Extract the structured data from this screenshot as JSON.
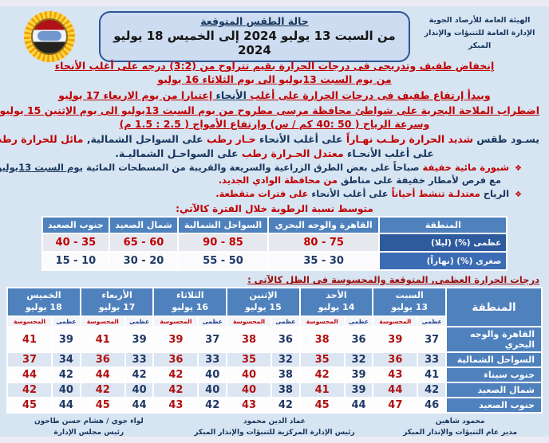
{
  "colors": {
    "red": "#c00000",
    "blue": "#17365d",
    "table_header_blue": "#4f81bd",
    "row_alt": "#dce6f2",
    "box_bg": "#cddcf0",
    "box_border": "#2f5496",
    "page_bg": "#d7e4f2"
  },
  "header": {
    "org_line1": "الهيئة العامة للأرصاد الجوية",
    "org_line2": "الإدارة العامة للتنبؤات والإنذار المبكر",
    "box_title": "حالة الطقس المتوقعة",
    "box_subtitle": "من السبت 13 يوليو 2024  إلى  الخميس 18 يوليو 2024",
    "logo": "ema-sun-emblem"
  },
  "paragraphs": [
    {
      "kind": "center",
      "name": "temp-drop-para",
      "lines": [
        [
          {
            "t": "إنخفاض طفيف وتدريجى فى درجات الحرارة بقيم تتراوح من ",
            "c": "r",
            "u": 1
          },
          {
            "t": "(3:2)",
            "c": "r",
            "u": 1,
            "d": 1
          },
          {
            "t": " درجه على أغلب الأنحاء",
            "c": "r",
            "u": 1
          }
        ],
        [
          {
            "t": "من يوم السبت 13يوليو الى يوم الثلاثاء 16 يوليو",
            "c": "r",
            "u": 1
          }
        ]
      ]
    },
    {
      "kind": "center",
      "name": "temp-rise-para",
      "lines": [
        [
          {
            "t": "ويبدأ إرتفاع طفيف فى درجات الحرارة على أغلب ",
            "c": "r",
            "u": 1
          },
          {
            "t": "الأنحاء",
            "c": "b",
            "u": 1
          },
          {
            "t": " إعتبارا من يوم الاربعاء 17 يوليو",
            "c": "r",
            "u": 1
          }
        ]
      ]
    },
    {
      "kind": "center",
      "name": "marine-warning-para",
      "lines": [
        [
          {
            "t": "اضطراب الملاحة البحرية على شواطئ محافظة مرسى مطروح من يوم السبت 13يوليو الى يوم الإثنين 15 يوليو",
            "c": "r",
            "u": 1
          }
        ],
        [
          {
            "t": "وسرعة الرياح ( ",
            "c": "r",
            "u": 1
          },
          {
            "t": "40: 50",
            "c": "r",
            "u": 1,
            "d": 1
          },
          {
            "t": " كم / س) وإرتفاع الأمواج ( ",
            "c": "r",
            "u": 1
          },
          {
            "t": "1.5 : 2.5",
            "c": "r",
            "u": 1,
            "d": 1
          },
          {
            "t": " م)",
            "c": "r",
            "u": 1
          }
        ]
      ]
    },
    {
      "kind": "center",
      "name": "general-weather-para",
      "lines": [
        [
          {
            "t": "يسـود طقس ",
            "c": "b"
          },
          {
            "t": "شديد الحرارة رطـب نهـاراً ",
            "c": "r"
          },
          {
            "t": "على أغلب الأنحاء ",
            "c": "b"
          },
          {
            "t": "حـار رطب ",
            "c": "r"
          },
          {
            "t": "على السواحل الشمالية, ",
            "c": "b"
          },
          {
            "t": "مائل للحرارة رطب ليـلاً",
            "c": "r"
          }
        ],
        [
          {
            "t": "على أغلب الأنحـاء  ",
            "c": "b"
          },
          {
            "t": "معتدل الحـرارة رطب ",
            "c": "r"
          },
          {
            "t": "على السواحـل الشماليـة.",
            "c": "b"
          }
        ]
      ]
    },
    {
      "kind": "bullet",
      "name": "fog-bullet",
      "lines": [
        [
          {
            "t": "شبورة مائية خفيفة ",
            "c": "r"
          },
          {
            "t": "صباحاً على بعض الطرق الزراعية والسريعة والقريبة من المسطحات المائية ",
            "c": "b"
          },
          {
            "t": "يوم السبت 13يوليو",
            "c": "b",
            "u": 1
          }
        ],
        [
          {
            "t": "مع فرص لأمطار خفيفة على مناطق ",
            "c": "b"
          },
          {
            "t": "من محافظة الوادي الجديد.",
            "c": "r"
          }
        ]
      ]
    },
    {
      "kind": "bullet",
      "name": "wind-bullet",
      "lines": [
        [
          {
            "t": "الرياح ",
            "c": "b"
          },
          {
            "t": "معتدلـة تنشط أحياناً ",
            "c": "r"
          },
          {
            "t": "على أغلب الأنحاء ",
            "c": "b"
          },
          {
            "t": "على فترات متقطعة.",
            "c": "r"
          }
        ]
      ]
    }
  ],
  "humidity": {
    "title": "متوسط نسبة الرطوبة خلال الفترة كالآتي:",
    "columns": [
      "المنطقة",
      "القاهرة والوجه البحري",
      "السواحل الشمالية",
      "شمال الصعيد",
      "جنوب الصعيد"
    ],
    "rows": [
      {
        "label": "عظمى (%) (ليلا)",
        "values": [
          "80 - 75",
          "90 - 85",
          "65 - 60",
          "40 - 35"
        ],
        "tone": "max"
      },
      {
        "label": "صغرى (%) (نهاراً)",
        "values": [
          "35 - 30",
          "55 - 50",
          "30 - 20",
          "15 - 10"
        ],
        "tone": "min"
      }
    ]
  },
  "temperature": {
    "title": "درجات الحرارة العظمى, المتوقعة والمحسوسة فى الظل كالآتى :",
    "region_header": "المنطقة",
    "sub_labels": [
      "عظمى",
      "المحسوسة"
    ],
    "days": [
      {
        "name": "السبت",
        "date": "13 يوليو"
      },
      {
        "name": "الأحد",
        "date": "14 يوليو"
      },
      {
        "name": "الإثنين",
        "date": "15 يوليو"
      },
      {
        "name": "الثلاثاء",
        "date": "16 يوليو"
      },
      {
        "name": "الأربعاء",
        "date": "17 يوليو"
      },
      {
        "name": "الخميس",
        "date": "18 يوليو"
      }
    ],
    "rows": [
      {
        "region": "القاهرة والوجه البحري",
        "values": [
          [
            37,
            39
          ],
          [
            36,
            38
          ],
          [
            36,
            38
          ],
          [
            37,
            39
          ],
          [
            39,
            41
          ],
          [
            39,
            41
          ]
        ]
      },
      {
        "region": "السواحل الشمالية",
        "values": [
          [
            33,
            36
          ],
          [
            32,
            35
          ],
          [
            32,
            35
          ],
          [
            33,
            36
          ],
          [
            33,
            36
          ],
          [
            34,
            37
          ]
        ]
      },
      {
        "region": "جنوب سيناء",
        "values": [
          [
            41,
            43
          ],
          [
            39,
            42
          ],
          [
            38,
            40
          ],
          [
            40,
            42
          ],
          [
            42,
            44
          ],
          [
            42,
            44
          ]
        ]
      },
      {
        "region": "شمال الصعيد",
        "values": [
          [
            42,
            44
          ],
          [
            39,
            41
          ],
          [
            38,
            40
          ],
          [
            40,
            42
          ],
          [
            40,
            42
          ],
          [
            40,
            42
          ]
        ]
      },
      {
        "region": "جنوب الصعيد",
        "values": [
          [
            46,
            47
          ],
          [
            44,
            45
          ],
          [
            42,
            43
          ],
          [
            42,
            43
          ],
          [
            44,
            45
          ],
          [
            44,
            45
          ]
        ]
      }
    ]
  },
  "footer": {
    "signatures": [
      {
        "name": "محمود شاهين",
        "title": "مدير عام التنبؤات والإنذار المبكر"
      },
      {
        "name": "عماد الدين محمود",
        "title": "رئيس الإدارة المركزية للتنبؤات والإنذار المبكر"
      },
      {
        "name": "لواء جوي / هشام حسن طاحون",
        "title": "رئيس مجلس الإدارة"
      }
    ]
  }
}
